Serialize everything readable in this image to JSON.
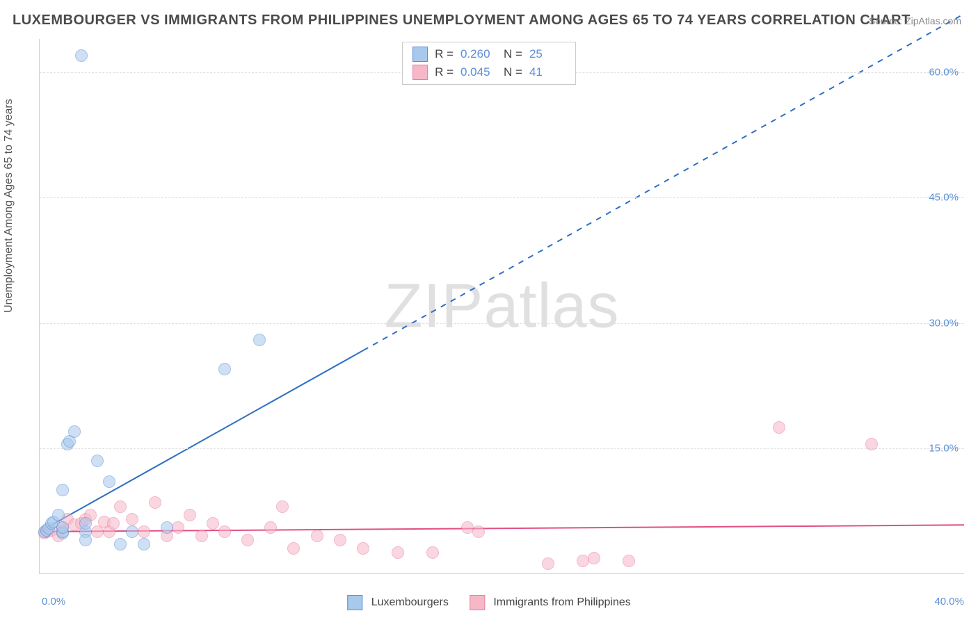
{
  "title": "LUXEMBOURGER VS IMMIGRANTS FROM PHILIPPINES UNEMPLOYMENT AMONG AGES 65 TO 74 YEARS CORRELATION CHART",
  "source": "Source: ZipAtlas.com",
  "ylabel": "Unemployment Among Ages 65 to 74 years",
  "watermark": "ZIPatlas",
  "chart": {
    "type": "scatter",
    "xlim": [
      0,
      40
    ],
    "ylim": [
      0,
      64
    ],
    "xticks": [
      "0.0%",
      "40.0%"
    ],
    "yticks": [
      {
        "v": 15,
        "label": "15.0%"
      },
      {
        "v": 30,
        "label": "30.0%"
      },
      {
        "v": 45,
        "label": "45.0%"
      },
      {
        "v": 60,
        "label": "60.0%"
      }
    ],
    "grid_color": "#e0e0e0",
    "background_color": "#ffffff",
    "marker_radius": 9,
    "marker_opacity": 0.55,
    "series": [
      {
        "name": "Luxembourgers",
        "fill": "#a8c8ec",
        "stroke": "#5b8fd6",
        "R": "0.260",
        "N": "25",
        "trend": {
          "slope": 1.55,
          "intercept": 5.0,
          "x_solid_max": 14,
          "color": "#2f6fc2",
          "width": 2,
          "dash_after": true
        },
        "points": [
          [
            0.2,
            5.0
          ],
          [
            0.3,
            5.2
          ],
          [
            0.4,
            5.4
          ],
          [
            0.5,
            6.0
          ],
          [
            0.6,
            6.2
          ],
          [
            0.8,
            7.0
          ],
          [
            1.0,
            4.8
          ],
          [
            1.0,
            5.0
          ],
          [
            1.0,
            5.5
          ],
          [
            1.0,
            10.0
          ],
          [
            1.2,
            15.5
          ],
          [
            1.3,
            15.8
          ],
          [
            1.5,
            17.0
          ],
          [
            1.8,
            62.0
          ],
          [
            2.0,
            5.0
          ],
          [
            2.0,
            6.0
          ],
          [
            2.5,
            13.5
          ],
          [
            3.0,
            11.0
          ],
          [
            3.5,
            3.5
          ],
          [
            4.0,
            5.0
          ],
          [
            4.5,
            3.5
          ],
          [
            5.5,
            5.5
          ],
          [
            8.0,
            24.5
          ],
          [
            9.5,
            28.0
          ],
          [
            2.0,
            4.0
          ]
        ]
      },
      {
        "name": "Immigrants from Philippines",
        "fill": "#f6b8c7",
        "stroke": "#e87fa0",
        "R": "0.045",
        "N": "41",
        "trend": {
          "slope": 0.02,
          "intercept": 5.0,
          "x_solid_max": 40,
          "color": "#e24e85",
          "width": 2,
          "dash_after": false
        },
        "points": [
          [
            0.2,
            4.8
          ],
          [
            0.3,
            5.0
          ],
          [
            0.5,
            5.2
          ],
          [
            0.8,
            4.5
          ],
          [
            1.0,
            5.5
          ],
          [
            1.2,
            6.5
          ],
          [
            1.5,
            5.8
          ],
          [
            1.8,
            6.0
          ],
          [
            2.0,
            6.5
          ],
          [
            2.2,
            7.0
          ],
          [
            2.5,
            5.0
          ],
          [
            2.8,
            6.2
          ],
          [
            3.0,
            5.0
          ],
          [
            3.2,
            6.0
          ],
          [
            3.5,
            8.0
          ],
          [
            4.0,
            6.5
          ],
          [
            4.5,
            5.0
          ],
          [
            5.0,
            8.5
          ],
          [
            5.5,
            4.5
          ],
          [
            6.0,
            5.5
          ],
          [
            6.5,
            7.0
          ],
          [
            7.0,
            4.5
          ],
          [
            7.5,
            6.0
          ],
          [
            8.0,
            5.0
          ],
          [
            9.0,
            4.0
          ],
          [
            10.0,
            5.5
          ],
          [
            10.5,
            8.0
          ],
          [
            11.0,
            3.0
          ],
          [
            12.0,
            4.5
          ],
          [
            13.0,
            4.0
          ],
          [
            14.0,
            3.0
          ],
          [
            15.5,
            2.5
          ],
          [
            17.0,
            2.5
          ],
          [
            18.5,
            5.5
          ],
          [
            19.0,
            5.0
          ],
          [
            22.0,
            1.2
          ],
          [
            23.5,
            1.5
          ],
          [
            24.0,
            1.8
          ],
          [
            25.5,
            1.5
          ],
          [
            32.0,
            17.5
          ],
          [
            36.0,
            15.5
          ]
        ]
      }
    ]
  }
}
